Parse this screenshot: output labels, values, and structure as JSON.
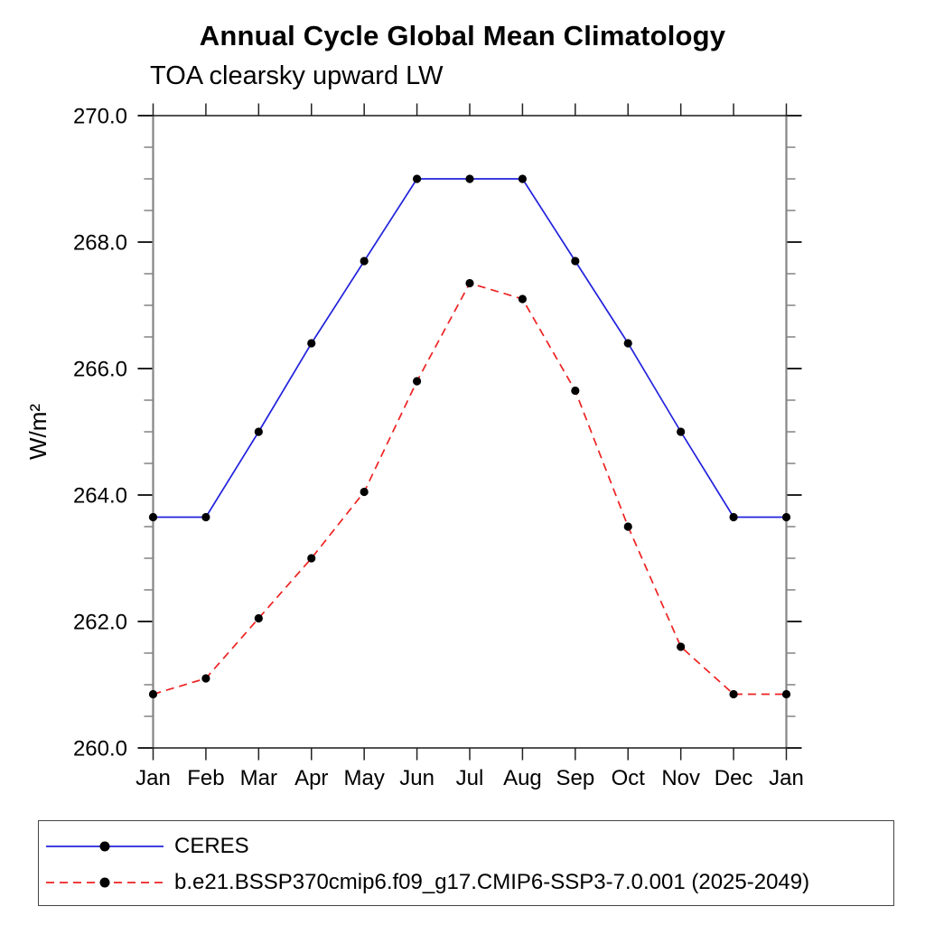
{
  "chart_data": {
    "type": "line",
    "title": "Annual Cycle Global Mean Climatology",
    "subtitle": "TOA clearsky upward LW",
    "ylabel": "W/m²",
    "xlabel": "",
    "x_categories": [
      "Jan",
      "Feb",
      "Mar",
      "Apr",
      "May",
      "Jun",
      "Jul",
      "Aug",
      "Sep",
      "Oct",
      "Nov",
      "Dec",
      "Jan"
    ],
    "ylim": [
      260.0,
      270.0
    ],
    "y_major_ticks": [
      270.0,
      268.0,
      266.0,
      264.0,
      262.0,
      260.0
    ],
    "y_tick_labels": [
      "270.0",
      "268.0",
      "266.0",
      "264.0",
      "262.0",
      "260.0"
    ],
    "y_minor_step": 0.5,
    "grid": false,
    "legend_position": "bottom-left-box",
    "series": [
      {
        "name": "CERES",
        "color": "#2222dd",
        "line_style": "solid",
        "marker": "circle",
        "marker_color": "#000000",
        "values": [
          263.65,
          263.65,
          265.0,
          266.4,
          267.7,
          269.0,
          269.0,
          269.0,
          267.7,
          266.4,
          265.0,
          263.65,
          263.65
        ]
      },
      {
        "name": "b.e21.BSSP370cmip6.f09_g17.CMIP6-SSP3-7.0.001 (2025-2049)",
        "color": "#ee2222",
        "line_style": "dashed",
        "marker": "circle",
        "marker_color": "#000000",
        "values": [
          260.85,
          261.1,
          262.05,
          263.0,
          264.05,
          265.8,
          267.35,
          267.1,
          265.65,
          263.5,
          261.6,
          260.85,
          260.85
        ]
      }
    ],
    "axis_colors": {
      "vertical_axis": "#858585",
      "horizontal_axis": "#1a1a1a",
      "minor_tick": "#8a8a8a",
      "major_tick": "#222222"
    }
  }
}
